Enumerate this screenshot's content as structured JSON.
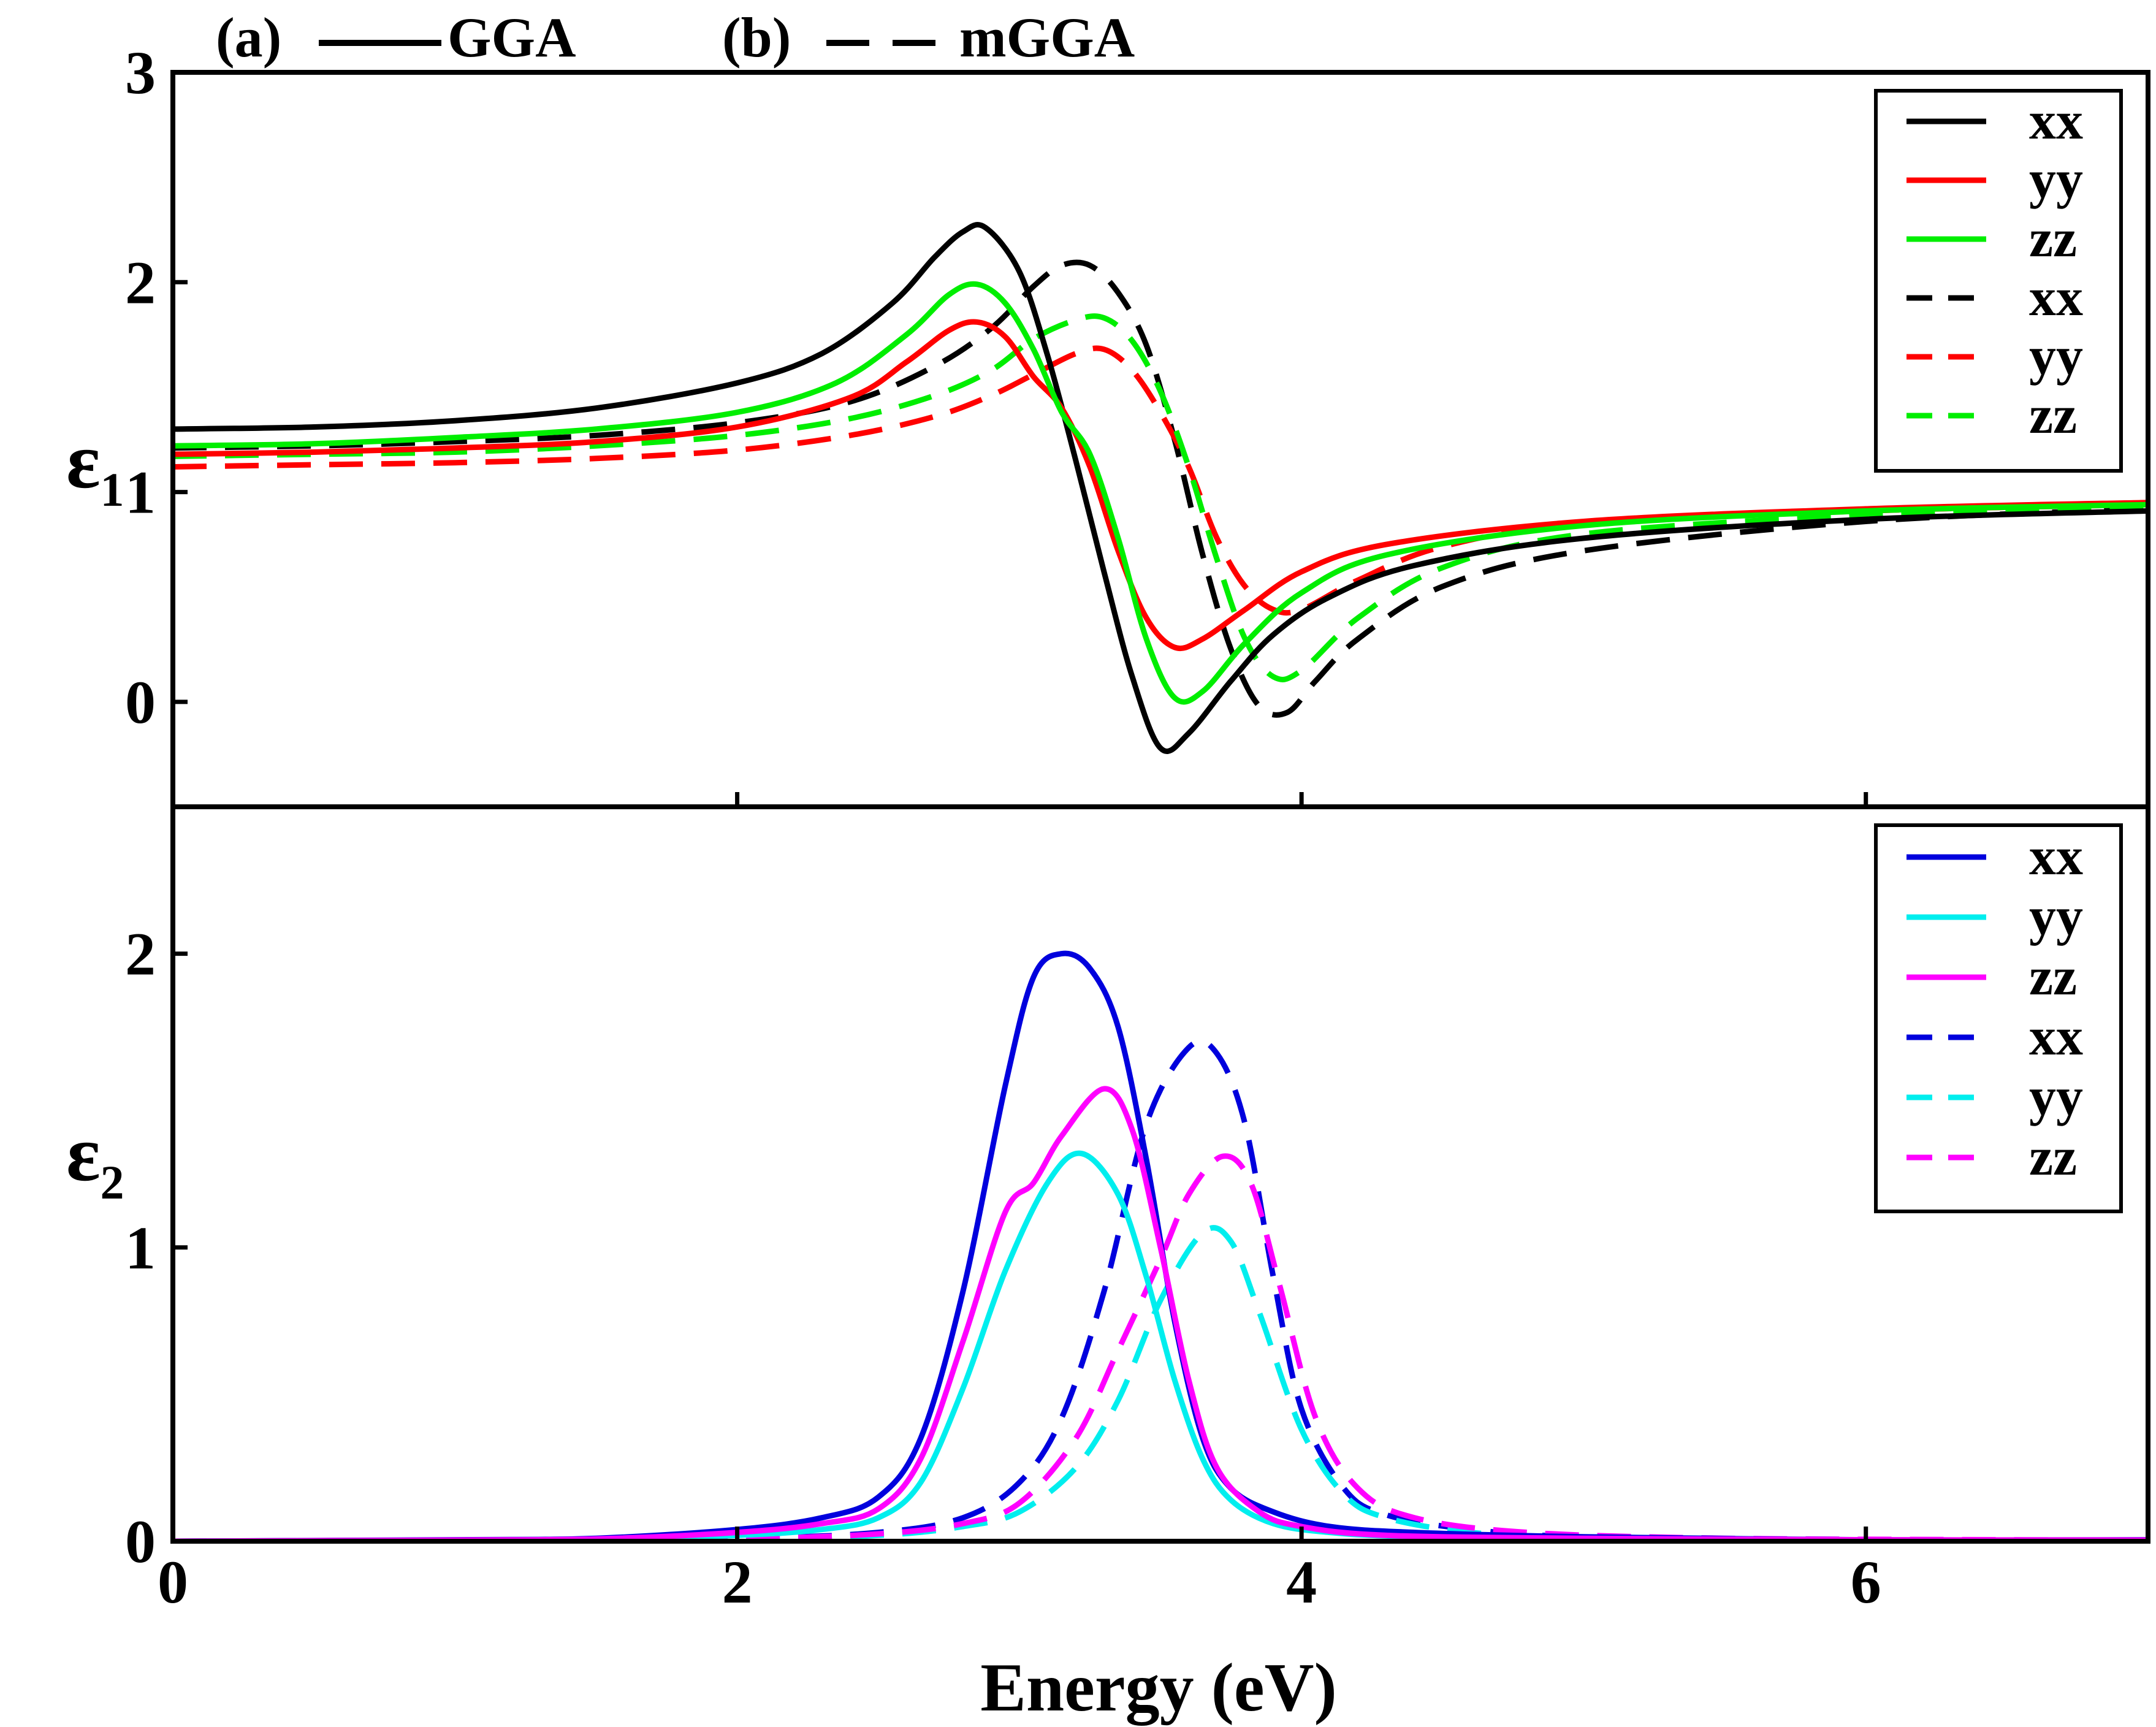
{
  "header": {
    "panel_a_label": "(a)",
    "panel_a_method": "GGA",
    "panel_b_label": "(b)",
    "panel_b_method": "mGGA"
  },
  "chart_data": [
    {
      "type": "line",
      "panel": "top",
      "ylabel_symbol": "ε",
      "ylabel_subscript": "1",
      "xlabel": "",
      "xlim": [
        0,
        7
      ],
      "ylim": [
        -0.5,
        3
      ],
      "yticks": [
        0,
        1,
        2,
        3
      ],
      "ytick_labels": [
        "0",
        "1",
        "2",
        "3"
      ],
      "xticks": [
        2,
        4,
        6
      ],
      "legend_position": "top-right",
      "series": [
        {
          "name": "xx",
          "method": "GGA",
          "color": "#000000",
          "dash": "solid",
          "x": [
            0,
            0.5,
            1.0,
            1.5,
            2.0,
            2.3,
            2.55,
            2.7,
            2.8,
            2.88,
            3.0,
            3.1,
            3.2,
            3.3,
            3.4,
            3.5,
            3.6,
            3.75,
            3.9,
            4.1,
            4.4,
            5.0,
            6.0,
            7.0
          ],
          "y": [
            1.3,
            1.31,
            1.34,
            1.4,
            1.52,
            1.66,
            1.9,
            2.12,
            2.24,
            2.26,
            2.05,
            1.65,
            1.15,
            0.62,
            0.12,
            -0.22,
            -0.15,
            0.1,
            0.32,
            0.5,
            0.65,
            0.78,
            0.87,
            0.91
          ]
        },
        {
          "name": "yy",
          "method": "GGA",
          "color": "#ff0000",
          "dash": "solid",
          "x": [
            0,
            0.5,
            1.0,
            1.5,
            2.0,
            2.4,
            2.6,
            2.75,
            2.85,
            2.95,
            3.05,
            3.15,
            3.25,
            3.35,
            3.45,
            3.55,
            3.65,
            3.8,
            4.0,
            4.3,
            5.0,
            6.0,
            7.0
          ],
          "y": [
            1.18,
            1.19,
            1.21,
            1.24,
            1.31,
            1.45,
            1.62,
            1.77,
            1.81,
            1.74,
            1.55,
            1.4,
            1.12,
            0.72,
            0.4,
            0.26,
            0.3,
            0.44,
            0.62,
            0.75,
            0.86,
            0.92,
            0.95
          ]
        },
        {
          "name": "zz",
          "method": "GGA",
          "color": "#00ee00",
          "dash": "solid",
          "x": [
            0,
            0.5,
            1.0,
            1.5,
            2.0,
            2.35,
            2.6,
            2.75,
            2.85,
            2.95,
            3.05,
            3.15,
            3.25,
            3.35,
            3.45,
            3.55,
            3.65,
            3.8,
            4.0,
            4.3,
            5.0,
            6.0,
            7.0
          ],
          "y": [
            1.22,
            1.23,
            1.26,
            1.3,
            1.38,
            1.52,
            1.75,
            1.94,
            1.99,
            1.9,
            1.68,
            1.38,
            1.18,
            0.78,
            0.3,
            0.02,
            0.05,
            0.28,
            0.52,
            0.7,
            0.84,
            0.91,
            0.94
          ]
        },
        {
          "name": "xx",
          "method": "mGGA",
          "color": "#000000",
          "dash": "dashed",
          "x": [
            0,
            0.5,
            1.0,
            1.5,
            2.0,
            2.4,
            2.7,
            2.9,
            3.05,
            3.15,
            3.25,
            3.35,
            3.45,
            3.55,
            3.65,
            3.75,
            3.85,
            3.95,
            4.05,
            4.2,
            4.5,
            5.0,
            6.0,
            7.0
          ],
          "y": [
            1.21,
            1.22,
            1.24,
            1.27,
            1.33,
            1.43,
            1.6,
            1.78,
            1.98,
            2.08,
            2.08,
            1.95,
            1.7,
            1.25,
            0.7,
            0.25,
            -0.02,
            -0.05,
            0.1,
            0.3,
            0.55,
            0.72,
            0.86,
            0.92
          ]
        },
        {
          "name": "yy",
          "method": "mGGA",
          "color": "#ff0000",
          "dash": "dashed",
          "x": [
            0,
            0.5,
            1.0,
            1.5,
            2.0,
            2.4,
            2.7,
            2.9,
            3.05,
            3.2,
            3.3,
            3.4,
            3.5,
            3.6,
            3.7,
            3.8,
            3.9,
            4.0,
            4.2,
            4.5,
            5.0,
            6.0,
            7.0
          ],
          "y": [
            1.12,
            1.13,
            1.14,
            1.16,
            1.2,
            1.27,
            1.36,
            1.46,
            1.56,
            1.66,
            1.68,
            1.58,
            1.38,
            1.12,
            0.78,
            0.55,
            0.44,
            0.44,
            0.58,
            0.74,
            0.85,
            0.91,
            0.94
          ]
        },
        {
          "name": "zz",
          "method": "mGGA",
          "color": "#00ee00",
          "dash": "dashed",
          "x": [
            0,
            0.5,
            1.0,
            1.5,
            2.0,
            2.4,
            2.7,
            2.9,
            3.05,
            3.2,
            3.3,
            3.4,
            3.5,
            3.6,
            3.7,
            3.8,
            3.9,
            4.0,
            4.2,
            4.5,
            5.0,
            6.0,
            7.0
          ],
          "y": [
            1.17,
            1.18,
            1.19,
            1.22,
            1.27,
            1.35,
            1.46,
            1.58,
            1.73,
            1.82,
            1.83,
            1.72,
            1.48,
            1.12,
            0.68,
            0.3,
            0.12,
            0.15,
            0.4,
            0.64,
            0.8,
            0.89,
            0.93
          ]
        }
      ]
    },
    {
      "type": "line",
      "panel": "bottom",
      "ylabel_symbol": "ε",
      "ylabel_subscript": "2",
      "xlabel": "Energy (eV)",
      "xlim": [
        0,
        7
      ],
      "ylim": [
        0,
        2.5
      ],
      "yticks": [
        0,
        1,
        2
      ],
      "ytick_labels": [
        "0",
        "1",
        "2"
      ],
      "xticks": [
        0,
        2,
        4,
        6
      ],
      "xtick_labels": [
        "0",
        "2",
        "4",
        "6"
      ],
      "legend_position": "top-right",
      "series": [
        {
          "name": "xx",
          "method": "GGA",
          "color": "#0000dd",
          "dash": "solid",
          "x": [
            0,
            1.0,
            1.5,
            2.0,
            2.3,
            2.5,
            2.65,
            2.8,
            2.95,
            3.05,
            3.15,
            3.25,
            3.35,
            3.45,
            3.55,
            3.65,
            3.75,
            3.9,
            4.1,
            4.4,
            5.0,
            6.0,
            7.0
          ],
          "y": [
            0,
            0.005,
            0.01,
            0.04,
            0.08,
            0.15,
            0.35,
            0.85,
            1.55,
            1.92,
            2.0,
            1.95,
            1.75,
            1.3,
            0.75,
            0.35,
            0.18,
            0.1,
            0.05,
            0.03,
            0.015,
            0.005,
            0.005
          ]
        },
        {
          "name": "yy",
          "method": "GGA",
          "color": "#00eeee",
          "dash": "solid",
          "x": [
            0,
            1.0,
            1.5,
            2.0,
            2.3,
            2.5,
            2.65,
            2.8,
            2.95,
            3.1,
            3.22,
            3.35,
            3.45,
            3.55,
            3.65,
            3.75,
            3.9,
            4.1,
            4.4,
            5.0,
            6.0,
            7.0
          ],
          "y": [
            0,
            0.003,
            0.007,
            0.02,
            0.04,
            0.08,
            0.2,
            0.52,
            0.92,
            1.22,
            1.32,
            1.18,
            0.9,
            0.55,
            0.28,
            0.14,
            0.06,
            0.03,
            0.015,
            0.008,
            0.004,
            0.003
          ]
        },
        {
          "name": "zz",
          "method": "GGA",
          "color": "#ff00ff",
          "dash": "solid",
          "x": [
            0,
            1.0,
            1.5,
            2.0,
            2.3,
            2.5,
            2.65,
            2.8,
            2.95,
            3.05,
            3.15,
            3.3,
            3.4,
            3.5,
            3.6,
            3.7,
            3.85,
            4.0,
            4.3,
            5.0,
            6.0,
            7.0
          ],
          "y": [
            0,
            0.004,
            0.008,
            0.03,
            0.06,
            0.11,
            0.28,
            0.68,
            1.12,
            1.22,
            1.38,
            1.54,
            1.4,
            1.0,
            0.55,
            0.25,
            0.1,
            0.05,
            0.02,
            0.01,
            0.005,
            0.004
          ]
        },
        {
          "name": "xx",
          "method": "mGGA",
          "color": "#0000dd",
          "dash": "dashed",
          "x": [
            0,
            1.0,
            2.0,
            2.5,
            2.8,
            3.0,
            3.15,
            3.3,
            3.45,
            3.6,
            3.7,
            3.8,
            3.9,
            4.0,
            4.15,
            4.3,
            4.6,
            5.0,
            6.0,
            7.0
          ],
          "y": [
            0,
            0.002,
            0.01,
            0.03,
            0.08,
            0.2,
            0.42,
            0.85,
            1.42,
            1.68,
            1.66,
            1.42,
            0.9,
            0.45,
            0.18,
            0.09,
            0.04,
            0.015,
            0.005,
            0.003
          ]
        },
        {
          "name": "yy",
          "method": "mGGA",
          "color": "#00eeee",
          "dash": "dashed",
          "x": [
            0,
            1.0,
            2.0,
            2.5,
            2.8,
            3.0,
            3.2,
            3.35,
            3.5,
            3.65,
            3.75,
            3.85,
            4.0,
            4.15,
            4.3,
            4.6,
            5.0,
            6.0,
            7.0
          ],
          "y": [
            0,
            0.002,
            0.008,
            0.02,
            0.05,
            0.1,
            0.25,
            0.48,
            0.82,
            1.05,
            1.02,
            0.78,
            0.38,
            0.16,
            0.08,
            0.03,
            0.012,
            0.004,
            0.002
          ]
        },
        {
          "name": "zz",
          "method": "mGGA",
          "color": "#ff00ff",
          "dash": "dashed",
          "x": [
            0,
            1.0,
            2.0,
            2.5,
            2.8,
            3.0,
            3.2,
            3.35,
            3.5,
            3.6,
            3.72,
            3.82,
            3.92,
            4.05,
            4.2,
            4.4,
            4.8,
            5.5,
            6.5,
            7.0
          ],
          "y": [
            0,
            0.002,
            0.009,
            0.025,
            0.06,
            0.13,
            0.35,
            0.65,
            0.96,
            1.18,
            1.31,
            1.22,
            0.88,
            0.42,
            0.18,
            0.08,
            0.03,
            0.01,
            0.005,
            0.003
          ]
        }
      ]
    }
  ]
}
